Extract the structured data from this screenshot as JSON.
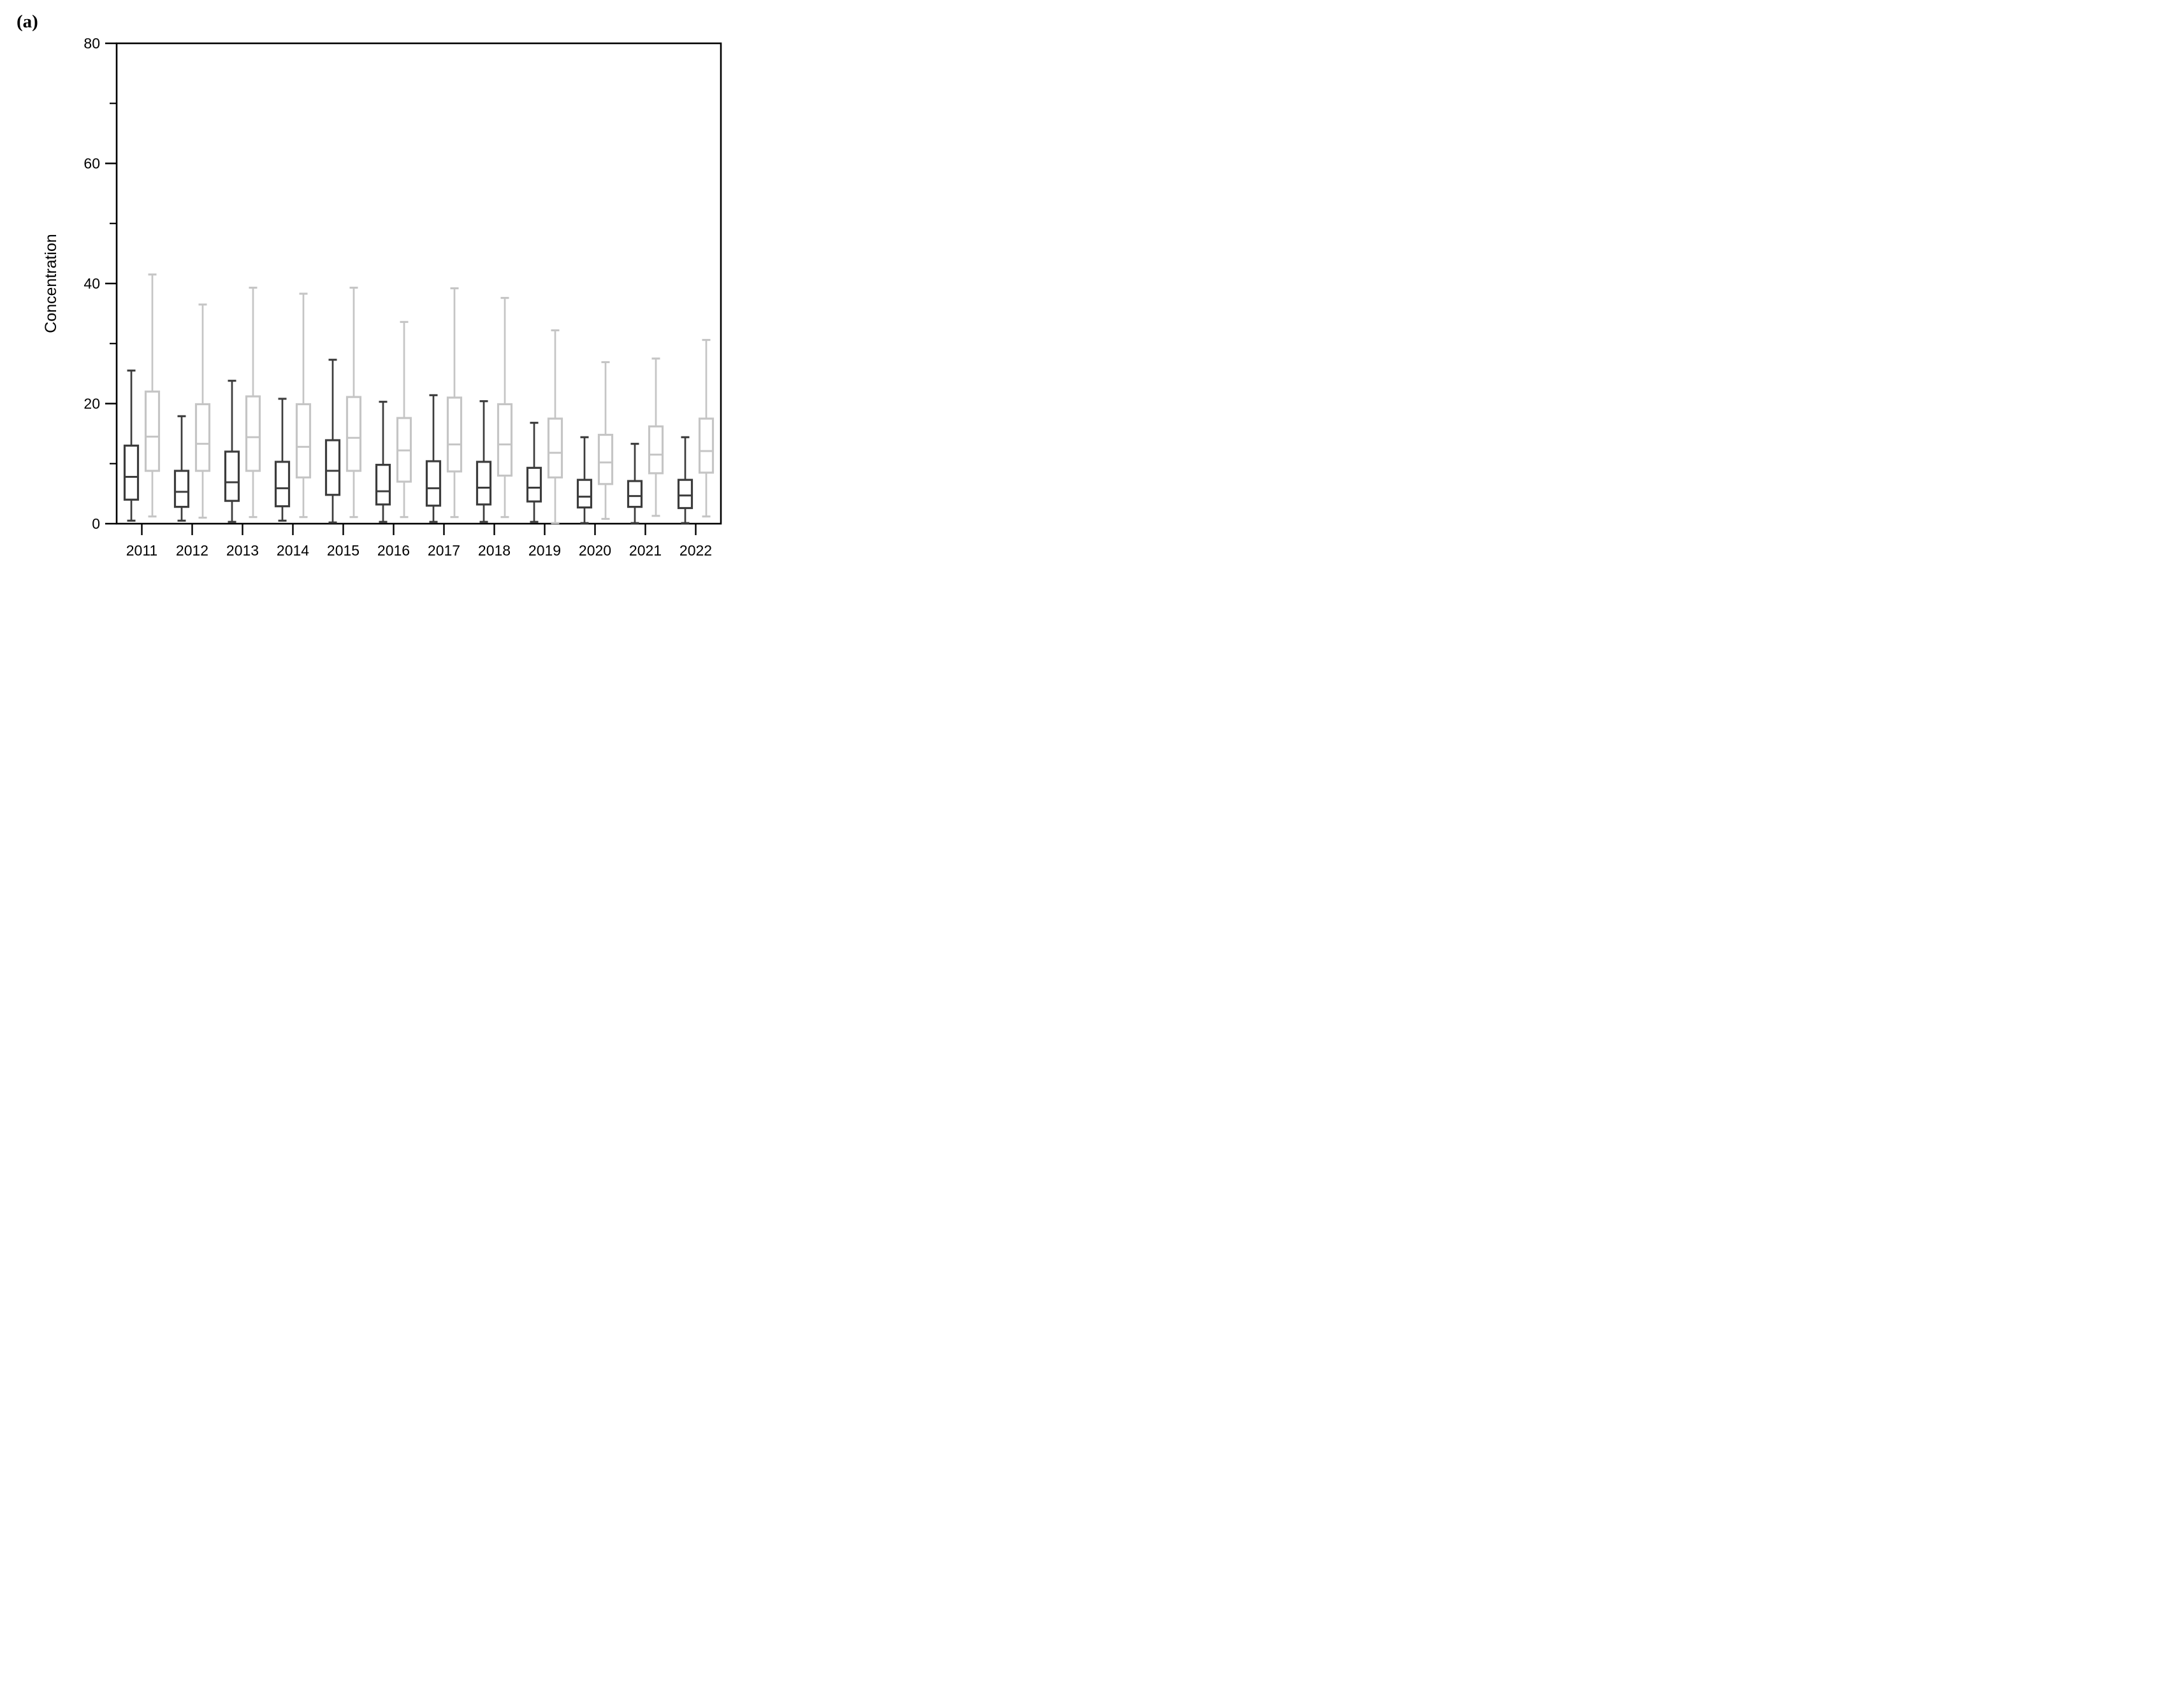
{
  "panel_label": "(a)",
  "colors": {
    "axis": "#000000",
    "dark_series": "#3c3c3c",
    "light_series": "#c5c5c5",
    "background": "#ffffff"
  },
  "chart_data": {
    "type": "boxplot",
    "title": "",
    "xlabel": "",
    "ylabel": "Concentration",
    "ylim": [
      0,
      80
    ],
    "yticks_major": [
      0,
      20,
      40,
      60,
      80
    ],
    "yticks_minor": [
      10,
      30,
      50,
      70
    ],
    "grid": "off",
    "legend": "none",
    "frame": "full-box",
    "categories": [
      "2011",
      "2012",
      "2013",
      "2014",
      "2015",
      "2016",
      "2017",
      "2018",
      "2019",
      "2020",
      "2021",
      "2022"
    ],
    "series": [
      {
        "name": "dark",
        "color": "#3c3c3c",
        "boxes": [
          {
            "year": "2011",
            "low": 0.5,
            "q1": 4.0,
            "median": 7.8,
            "q3": 13.0,
            "high": 25.5
          },
          {
            "year": "2012",
            "low": 0.5,
            "q1": 2.8,
            "median": 5.3,
            "q3": 8.8,
            "high": 17.9
          },
          {
            "year": "2013",
            "low": 0.3,
            "q1": 3.8,
            "median": 6.9,
            "q3": 12.0,
            "high": 23.8
          },
          {
            "year": "2014",
            "low": 0.5,
            "q1": 2.9,
            "median": 5.9,
            "q3": 10.3,
            "high": 20.8
          },
          {
            "year": "2015",
            "low": 0.2,
            "q1": 4.8,
            "median": 8.8,
            "q3": 13.9,
            "high": 27.3
          },
          {
            "year": "2016",
            "low": 0.3,
            "q1": 3.2,
            "median": 5.4,
            "q3": 9.8,
            "high": 20.3
          },
          {
            "year": "2017",
            "low": 0.3,
            "q1": 3.0,
            "median": 5.9,
            "q3": 10.4,
            "high": 21.4
          },
          {
            "year": "2018",
            "low": 0.3,
            "q1": 3.2,
            "median": 6.0,
            "q3": 10.3,
            "high": 20.4
          },
          {
            "year": "2019",
            "low": 0.3,
            "q1": 3.7,
            "median": 6.0,
            "q3": 9.3,
            "high": 16.8
          },
          {
            "year": "2020",
            "low": 0.1,
            "q1": 2.7,
            "median": 4.5,
            "q3": 7.3,
            "high": 14.4
          },
          {
            "year": "2021",
            "low": 0.1,
            "q1": 2.8,
            "median": 4.6,
            "q3": 7.1,
            "high": 13.3
          },
          {
            "year": "2022",
            "low": 0.1,
            "q1": 2.6,
            "median": 4.7,
            "q3": 7.3,
            "high": 14.4
          }
        ]
      },
      {
        "name": "light",
        "color": "#c5c5c5",
        "boxes": [
          {
            "year": "2011",
            "low": 1.2,
            "q1": 8.8,
            "median": 14.5,
            "q3": 22.0,
            "high": 41.5
          },
          {
            "year": "2012",
            "low": 1.0,
            "q1": 8.8,
            "median": 13.3,
            "q3": 19.9,
            "high": 36.5
          },
          {
            "year": "2013",
            "low": 1.1,
            "q1": 8.8,
            "median": 14.4,
            "q3": 21.2,
            "high": 39.3
          },
          {
            "year": "2014",
            "low": 1.1,
            "q1": 7.7,
            "median": 12.8,
            "q3": 19.9,
            "high": 38.3
          },
          {
            "year": "2015",
            "low": 1.1,
            "q1": 8.8,
            "median": 14.3,
            "q3": 21.1,
            "high": 39.3
          },
          {
            "year": "2016",
            "low": 1.1,
            "q1": 7.0,
            "median": 12.2,
            "q3": 17.6,
            "high": 33.6
          },
          {
            "year": "2017",
            "low": 1.1,
            "q1": 8.7,
            "median": 13.2,
            "q3": 21.0,
            "high": 39.2
          },
          {
            "year": "2018",
            "low": 1.1,
            "q1": 8.0,
            "median": 13.2,
            "q3": 19.9,
            "high": 37.6
          },
          {
            "year": "2019",
            "low": 0.1,
            "q1": 7.7,
            "median": 11.8,
            "q3": 17.5,
            "high": 32.2
          },
          {
            "year": "2020",
            "low": 0.8,
            "q1": 6.6,
            "median": 10.2,
            "q3": 14.8,
            "high": 26.9
          },
          {
            "year": "2021",
            "low": 1.3,
            "q1": 8.4,
            "median": 11.5,
            "q3": 16.2,
            "high": 27.5
          },
          {
            "year": "2022",
            "low": 1.2,
            "q1": 8.5,
            "median": 12.1,
            "q3": 17.5,
            "high": 30.6
          }
        ]
      }
    ]
  }
}
